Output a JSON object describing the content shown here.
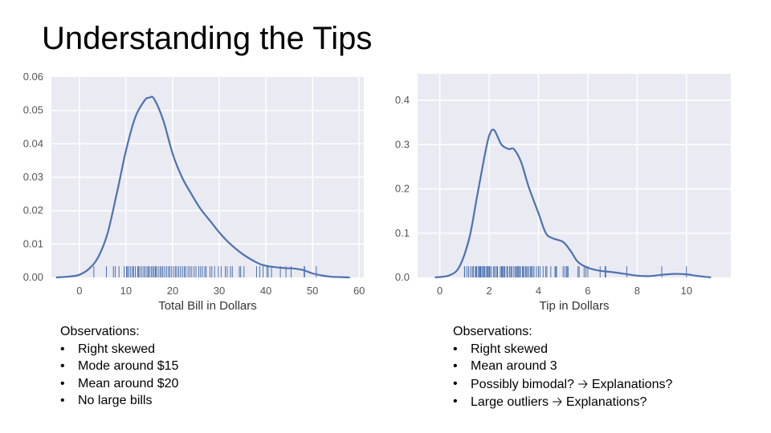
{
  "slide": {
    "title": "Understanding the Tips"
  },
  "colors": {
    "plot_background": "#eaeaf2",
    "grid": "#ffffff",
    "line": "#4c72b0"
  },
  "chart_data": [
    {
      "type": "line",
      "subtype": "kde with rug",
      "title": "",
      "xlabel": "Total Bill in Dollars",
      "ylabel": "",
      "xlim": [
        -6,
        61
      ],
      "ylim": [
        0,
        0.06
      ],
      "xticks": [
        0,
        10,
        20,
        30,
        40,
        50,
        60
      ],
      "yticks": [
        0.0,
        0.01,
        0.02,
        0.03,
        0.04,
        0.05,
        0.06
      ],
      "ytick_labels": [
        "0.00",
        "0.01",
        "0.02",
        "0.03",
        "0.04",
        "0.05",
        "0.06"
      ],
      "grid": true,
      "series": [
        {
          "x": [
            -5,
            -2,
            0,
            2,
            4,
            6,
            8,
            10,
            12,
            14,
            15,
            16,
            18,
            20,
            22,
            24,
            26,
            28,
            30,
            32,
            35,
            38,
            40,
            44,
            46,
            48,
            50,
            52,
            54,
            56,
            58
          ],
          "y": [
            0.0,
            0.0003,
            0.0008,
            0.0025,
            0.006,
            0.013,
            0.025,
            0.038,
            0.048,
            0.053,
            0.0538,
            0.0535,
            0.047,
            0.037,
            0.03,
            0.025,
            0.0205,
            0.017,
            0.0135,
            0.0105,
            0.007,
            0.0045,
            0.0035,
            0.0028,
            0.0027,
            0.0022,
            0.0012,
            0.0006,
            0.0002,
            0.0001,
            0.0
          ]
        }
      ],
      "rug": [
        3.1,
        5.8,
        7.3,
        7.7,
        8.5,
        9.6,
        10.1,
        10.3,
        10.6,
        11.0,
        11.4,
        11.6,
        12.0,
        12.5,
        12.7,
        13.0,
        13.4,
        13.8,
        14.1,
        14.5,
        14.8,
        15.0,
        15.4,
        15.7,
        16.0,
        16.3,
        16.5,
        16.9,
        17.3,
        17.6,
        17.9,
        18.3,
        18.7,
        19.1,
        19.4,
        19.8,
        20.2,
        20.6,
        20.9,
        21.3,
        21.7,
        22.1,
        22.5,
        22.8,
        23.3,
        23.7,
        24.1,
        24.6,
        25.0,
        25.6,
        26.0,
        26.4,
        26.9,
        27.2,
        28.0,
        28.4,
        29.0,
        29.8,
        30.4,
        31.3,
        31.7,
        32.4,
        32.8,
        34.3,
        34.6,
        35.3,
        38.0,
        38.7,
        39.4,
        40.2,
        40.5,
        41.2,
        43.1,
        44.3,
        45.4,
        48.2,
        48.3,
        50.8
      ]
    },
    {
      "type": "line",
      "subtype": "kde with rug",
      "title": "",
      "xlabel": "Tip in Dollars",
      "ylabel": "",
      "xlim": [
        -0.9,
        11.8
      ],
      "ylim": [
        0,
        0.46
      ],
      "xticks": [
        0,
        2,
        4,
        6,
        8,
        10
      ],
      "yticks": [
        0.0,
        0.1,
        0.2,
        0.3,
        0.4
      ],
      "ytick_labels": [
        "0.0",
        "0.1",
        "0.2",
        "0.3",
        "0.4"
      ],
      "grid": true,
      "series": [
        {
          "x": [
            -0.2,
            0.4,
            0.8,
            1.2,
            1.5,
            1.8,
            2.0,
            2.2,
            2.5,
            2.8,
            3.0,
            3.3,
            3.6,
            4.0,
            4.3,
            4.6,
            5.0,
            5.3,
            5.6,
            6.0,
            6.5,
            7.0,
            7.5,
            8.0,
            8.5,
            9.0,
            9.5,
            10.0,
            10.5,
            11.0
          ],
          "y": [
            0.0,
            0.005,
            0.025,
            0.09,
            0.18,
            0.27,
            0.32,
            0.333,
            0.3,
            0.29,
            0.29,
            0.26,
            0.205,
            0.145,
            0.1,
            0.088,
            0.08,
            0.06,
            0.035,
            0.022,
            0.015,
            0.012,
            0.008,
            0.004,
            0.003,
            0.006,
            0.008,
            0.007,
            0.003,
            0.0
          ]
        }
      ],
      "rug": [
        1.0,
        1.01,
        1.1,
        1.17,
        1.25,
        1.32,
        1.36,
        1.44,
        1.47,
        1.5,
        1.57,
        1.61,
        1.64,
        1.66,
        1.71,
        1.76,
        1.8,
        1.83,
        1.9,
        1.92,
        1.96,
        2.0,
        2.03,
        2.09,
        2.18,
        2.23,
        2.24,
        2.31,
        2.34,
        2.45,
        2.5,
        2.52,
        2.55,
        2.6,
        2.64,
        2.72,
        2.75,
        2.83,
        2.88,
        2.92,
        3.0,
        3.06,
        3.11,
        3.14,
        3.18,
        3.23,
        3.27,
        3.35,
        3.39,
        3.41,
        3.48,
        3.5,
        3.55,
        3.61,
        3.68,
        3.71,
        3.76,
        3.82,
        3.92,
        4.0,
        4.06,
        4.19,
        4.29,
        4.34,
        4.5,
        4.67,
        4.71,
        4.73,
        5.0,
        5.07,
        5.14,
        5.16,
        5.2,
        5.6,
        5.65,
        5.85,
        5.92,
        6.0,
        6.5,
        6.7,
        6.73,
        7.58,
        9.0,
        10.0
      ]
    }
  ],
  "observations": {
    "left": {
      "heading": "Observations:",
      "items": [
        "Right skewed",
        "Mode around $15",
        "Mean around $20",
        "No large bills"
      ]
    },
    "right": {
      "heading": "Observations:",
      "bullet": "•",
      "items": [
        {
          "text": "Right skewed"
        },
        {
          "text": "Mean around 3"
        },
        {
          "text": "Possibly bimodal?",
          "arrow": "🡢",
          "after": "Explanations?"
        },
        {
          "text": "Large outliers",
          "arrow": "🡢",
          "after": "Explanations?"
        }
      ]
    }
  }
}
